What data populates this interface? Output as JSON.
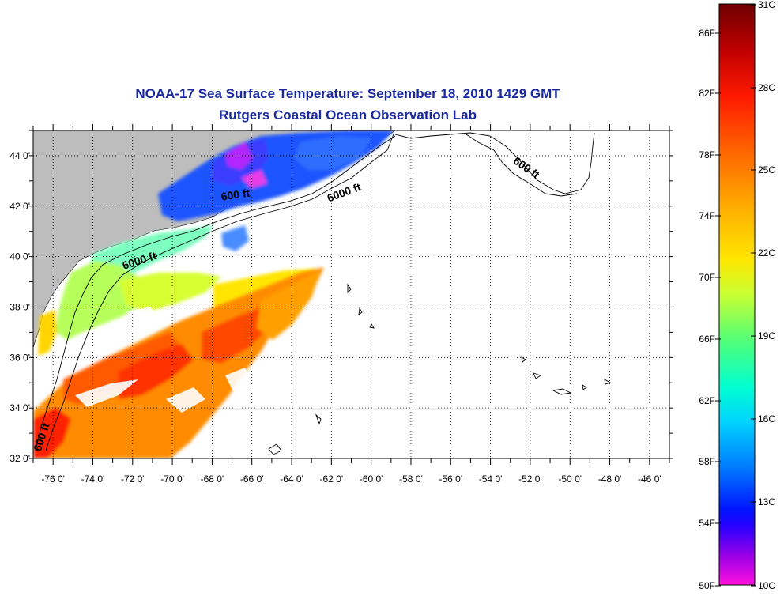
{
  "title": {
    "line1": "NOAA-17 Sea Surface Temperature:  September 18, 2010 1429 GMT",
    "line2": "Rutgers Coastal Ocean Observation Lab"
  },
  "map": {
    "lon_range": [
      -77,
      -45
    ],
    "lat_range": [
      32,
      45
    ],
    "lat_ticks": [
      {
        "value": 44,
        "label": "44 0'"
      },
      {
        "value": 42,
        "label": "42 0'"
      },
      {
        "value": 40,
        "label": "40 0'"
      },
      {
        "value": 38,
        "label": "38 0'"
      },
      {
        "value": 36,
        "label": "36 0'"
      },
      {
        "value": 34,
        "label": "34 0'"
      },
      {
        "value": 32,
        "label": "32 0'"
      }
    ],
    "lon_ticks": [
      {
        "value": -76,
        "label": "-76 0'"
      },
      {
        "value": -74,
        "label": "-74 0'"
      },
      {
        "value": -72,
        "label": "-72 0'"
      },
      {
        "value": -70,
        "label": "-70 0'"
      },
      {
        "value": -68,
        "label": "-68 0'"
      },
      {
        "value": -66,
        "label": "-66 0'"
      },
      {
        "value": -64,
        "label": "-64 0'"
      },
      {
        "value": -62,
        "label": "-62 0'"
      },
      {
        "value": -60,
        "label": "-60 0'"
      },
      {
        "value": -58,
        "label": "-58 0'"
      },
      {
        "value": -56,
        "label": "-56 0'"
      },
      {
        "value": -54,
        "label": "-54 0'"
      },
      {
        "value": -52,
        "label": "-52 0'"
      },
      {
        "value": -50,
        "label": "-50 0'"
      },
      {
        "value": -48,
        "label": "-48 0'"
      },
      {
        "value": -46,
        "label": "-46 0'"
      }
    ],
    "contour_labels": [
      {
        "text": "600 ft",
        "lon": -66.8,
        "lat": 42.3,
        "angle": -8
      },
      {
        "text": "6000 ft",
        "lon": -61.3,
        "lat": 42.4,
        "angle": -20
      },
      {
        "text": "600 ft",
        "lon": -52.3,
        "lat": 43.4,
        "angle": 35
      },
      {
        "text": "6000 ft",
        "lon": -71.6,
        "lat": 39.7,
        "angle": -18
      },
      {
        "text": "600 ft",
        "lon": -76.4,
        "lat": 32.8,
        "angle": -72
      }
    ],
    "colors": {
      "land": "#bdbdbd",
      "contour": "#000000",
      "grid": "#000000",
      "ocean_nodata": "#ffffff"
    }
  },
  "colorbar": {
    "fahrenheit": [
      "86F",
      "82F",
      "78F",
      "74F",
      "70F",
      "66F",
      "62F",
      "58F",
      "54F",
      "50F"
    ],
    "celsius": [
      "31C",
      "28C",
      "25C",
      "22C",
      "19C",
      "16C",
      "13C",
      "10C"
    ],
    "range_c": [
      10,
      31
    ],
    "gradient": [
      "#6e0000",
      "#c00000",
      "#ff0000",
      "#ff6a00",
      "#ffb400",
      "#ffe600",
      "#c8ff32",
      "#64ff64",
      "#00ffc8",
      "#00e6ff",
      "#0096ff",
      "#0032ff",
      "#0000ff",
      "#8000e0",
      "#ff00e0"
    ]
  }
}
